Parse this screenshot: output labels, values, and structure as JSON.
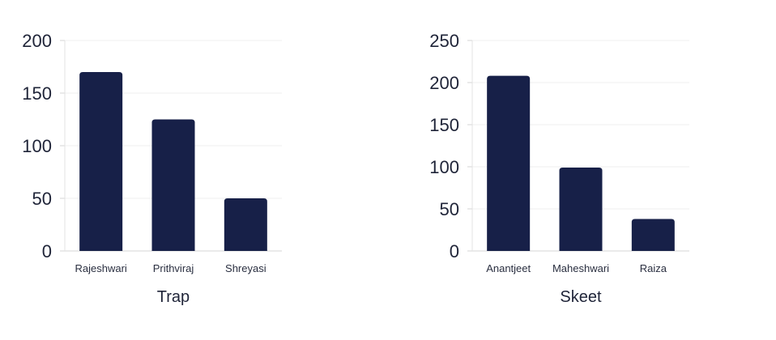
{
  "chart_data": [
    {
      "type": "bar",
      "title": "Trap",
      "categories": [
        "Rajeshwari",
        "Prithviraj",
        "Shreyasi"
      ],
      "values": [
        170,
        125,
        50
      ],
      "ylim": [
        0,
        200
      ],
      "yticks": [
        0,
        50,
        100,
        150,
        200
      ],
      "grid": true,
      "bar_color": "#172048"
    },
    {
      "type": "bar",
      "title": "Skeet",
      "categories": [
        "Anantjeet",
        "Maheshwari",
        "Raiza"
      ],
      "values": [
        208,
        99,
        38
      ],
      "ylim": [
        0,
        250
      ],
      "yticks": [
        0,
        50,
        100,
        150,
        200,
        250
      ],
      "grid": true,
      "bar_color": "#172048"
    }
  ]
}
